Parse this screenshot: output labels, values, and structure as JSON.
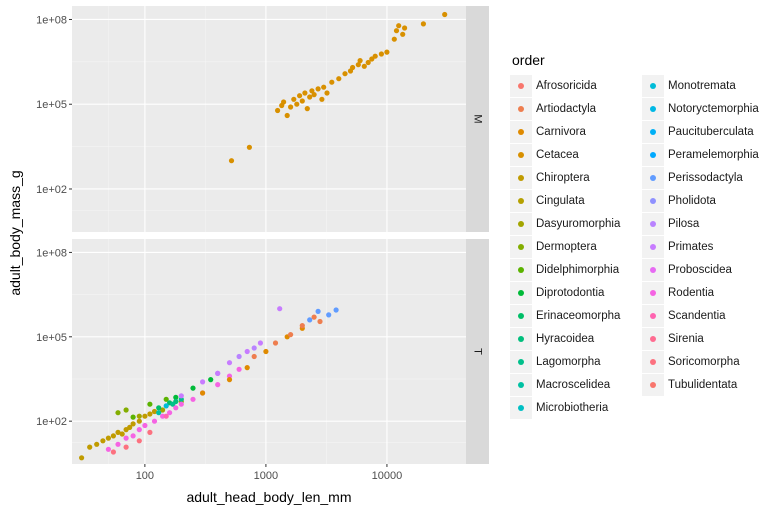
{
  "chart_data": {
    "type": "scatter",
    "xlabel": "adult_head_body_len_mm",
    "ylabel": "adult_body_mass_g",
    "x_scale": "log10",
    "y_scale": "log10",
    "xlim": [
      25,
      45000
    ],
    "ylim": [
      3,
      300000000
    ],
    "x_ticks": [
      {
        "value": 100,
        "label": "100"
      },
      {
        "value": 1000,
        "label": "1000"
      },
      {
        "value": 10000,
        "label": "10000"
      }
    ],
    "y_ticks": [
      {
        "value": 100,
        "label": "1e+02"
      },
      {
        "value": 100000,
        "label": "1e+05"
      },
      {
        "value": 100000000,
        "label": "1e+08"
      }
    ],
    "grid": true,
    "legend_position": "right",
    "legend_title": "order",
    "facets": [
      {
        "strip": "M",
        "points": [
          {
            "order": "Cetacea",
            "x": 520,
            "y": 1000
          },
          {
            "order": "Cetacea",
            "x": 730,
            "y": 3000
          },
          {
            "order": "Cetacea",
            "x": 1250,
            "y": 60000
          },
          {
            "order": "Cetacea",
            "x": 1350,
            "y": 90000
          },
          {
            "order": "Cetacea",
            "x": 1400,
            "y": 120000
          },
          {
            "order": "Cetacea",
            "x": 1500,
            "y": 40000
          },
          {
            "order": "Cetacea",
            "x": 1600,
            "y": 80000
          },
          {
            "order": "Cetacea",
            "x": 1700,
            "y": 150000
          },
          {
            "order": "Cetacea",
            "x": 1800,
            "y": 100000
          },
          {
            "order": "Cetacea",
            "x": 1900,
            "y": 200000
          },
          {
            "order": "Cetacea",
            "x": 2000,
            "y": 130000
          },
          {
            "order": "Cetacea",
            "x": 2100,
            "y": 250000
          },
          {
            "order": "Cetacea",
            "x": 2200,
            "y": 70000
          },
          {
            "order": "Cetacea",
            "x": 2300,
            "y": 180000
          },
          {
            "order": "Cetacea",
            "x": 2400,
            "y": 300000
          },
          {
            "order": "Cetacea",
            "x": 2500,
            "y": 220000
          },
          {
            "order": "Cetacea",
            "x": 2700,
            "y": 350000
          },
          {
            "order": "Cetacea",
            "x": 2900,
            "y": 150000
          },
          {
            "order": "Cetacea",
            "x": 3000,
            "y": 400000
          },
          {
            "order": "Cetacea",
            "x": 3200,
            "y": 250000
          },
          {
            "order": "Cetacea",
            "x": 3500,
            "y": 600000
          },
          {
            "order": "Cetacea",
            "x": 4000,
            "y": 800000
          },
          {
            "order": "Cetacea",
            "x": 4500,
            "y": 1200000
          },
          {
            "order": "Cetacea",
            "x": 5000,
            "y": 1500000
          },
          {
            "order": "Cetacea",
            "x": 5200,
            "y": 2000000
          },
          {
            "order": "Cetacea",
            "x": 5800,
            "y": 2500000
          },
          {
            "order": "Cetacea",
            "x": 6000,
            "y": 3500000
          },
          {
            "order": "Cetacea",
            "x": 6500,
            "y": 2200000
          },
          {
            "order": "Cetacea",
            "x": 7000,
            "y": 3000000
          },
          {
            "order": "Cetacea",
            "x": 7500,
            "y": 4000000
          },
          {
            "order": "Cetacea",
            "x": 8000,
            "y": 5000000
          },
          {
            "order": "Cetacea",
            "x": 9000,
            "y": 6000000
          },
          {
            "order": "Cetacea",
            "x": 10000,
            "y": 7000000
          },
          {
            "order": "Cetacea",
            "x": 11500,
            "y": 20000000
          },
          {
            "order": "Cetacea",
            "x": 12000,
            "y": 40000000
          },
          {
            "order": "Cetacea",
            "x": 12500,
            "y": 60000000
          },
          {
            "order": "Cetacea",
            "x": 13500,
            "y": 30000000
          },
          {
            "order": "Cetacea",
            "x": 14000,
            "y": 50000000
          },
          {
            "order": "Cetacea",
            "x": 20000,
            "y": 70000000
          },
          {
            "order": "Cetacea",
            "x": 30000,
            "y": 150000000
          }
        ]
      },
      {
        "strip": "T",
        "points": [
          {
            "order": "Chiroptera",
            "x": 30,
            "y": 5
          },
          {
            "order": "Chiroptera",
            "x": 35,
            "y": 12
          },
          {
            "order": "Chiroptera",
            "x": 40,
            "y": 15
          },
          {
            "order": "Chiroptera",
            "x": 45,
            "y": 20
          },
          {
            "order": "Chiroptera",
            "x": 50,
            "y": 25
          },
          {
            "order": "Chiroptera",
            "x": 55,
            "y": 30
          },
          {
            "order": "Chiroptera",
            "x": 60,
            "y": 40
          },
          {
            "order": "Chiroptera",
            "x": 65,
            "y": 35
          },
          {
            "order": "Chiroptera",
            "x": 70,
            "y": 50
          },
          {
            "order": "Chiroptera",
            "x": 75,
            "y": 60
          },
          {
            "order": "Chiroptera",
            "x": 80,
            "y": 80
          },
          {
            "order": "Chiroptera",
            "x": 90,
            "y": 100
          },
          {
            "order": "Chiroptera",
            "x": 100,
            "y": 150
          },
          {
            "order": "Chiroptera",
            "x": 110,
            "y": 180
          },
          {
            "order": "Chiroptera",
            "x": 120,
            "y": 220
          },
          {
            "order": "Dasyuromorphia",
            "x": 90,
            "y": 150
          },
          {
            "order": "Dasyuromorphia",
            "x": 140,
            "y": 250
          },
          {
            "order": "Dasyuromorphia",
            "x": 200,
            "y": 500
          },
          {
            "order": "Dermoptera",
            "x": 60,
            "y": 200
          },
          {
            "order": "Dermoptera",
            "x": 70,
            "y": 250
          },
          {
            "order": "Didelphimorphia",
            "x": 80,
            "y": 140
          },
          {
            "order": "Didelphimorphia",
            "x": 110,
            "y": 400
          },
          {
            "order": "Didelphimorphia",
            "x": 150,
            "y": 600
          },
          {
            "order": "Diprotodontia",
            "x": 180,
            "y": 700
          },
          {
            "order": "Diprotodontia",
            "x": 250,
            "y": 1500
          },
          {
            "order": "Diprotodontia",
            "x": 350,
            "y": 3000
          },
          {
            "order": "Erinaceomorpha",
            "x": 130,
            "y": 300
          },
          {
            "order": "Erinaceomorpha",
            "x": 160,
            "y": 450
          },
          {
            "order": "Hyracoidea",
            "x": 180,
            "y": 500
          },
          {
            "order": "Lagomorpha",
            "x": 170,
            "y": 400
          },
          {
            "order": "Lagomorpha",
            "x": 200,
            "y": 600
          },
          {
            "order": "Macroscelidea",
            "x": 130,
            "y": 200
          },
          {
            "order": "Monotremata",
            "x": 150,
            "y": 350
          },
          {
            "order": "Perissodactyla",
            "x": 2300,
            "y": 400000
          },
          {
            "order": "Perissodactyla",
            "x": 2700,
            "y": 800000
          },
          {
            "order": "Perissodactyla",
            "x": 3300,
            "y": 600000
          },
          {
            "order": "Perissodactyla",
            "x": 3800,
            "y": 900000
          },
          {
            "order": "Pilosa",
            "x": 400,
            "y": 5000
          },
          {
            "order": "Pilosa",
            "x": 600,
            "y": 20000
          },
          {
            "order": "Pilosa",
            "x": 800,
            "y": 40000
          },
          {
            "order": "Primates",
            "x": 200,
            "y": 800
          },
          {
            "order": "Primates",
            "x": 300,
            "y": 2500
          },
          {
            "order": "Primates",
            "x": 400,
            "y": 5000
          },
          {
            "order": "Primates",
            "x": 500,
            "y": 12000
          },
          {
            "order": "Primates",
            "x": 700,
            "y": 30000
          },
          {
            "order": "Primates",
            "x": 900,
            "y": 60000
          },
          {
            "order": "Primates",
            "x": 1300,
            "y": 1000000
          },
          {
            "order": "Rodentia",
            "x": 50,
            "y": 10
          },
          {
            "order": "Rodentia",
            "x": 60,
            "y": 15
          },
          {
            "order": "Rodentia",
            "x": 70,
            "y": 25
          },
          {
            "order": "Rodentia",
            "x": 80,
            "y": 30
          },
          {
            "order": "Rodentia",
            "x": 90,
            "y": 50
          },
          {
            "order": "Rodentia",
            "x": 100,
            "y": 70
          },
          {
            "order": "Rodentia",
            "x": 120,
            "y": 100
          },
          {
            "order": "Rodentia",
            "x": 140,
            "y": 150
          },
          {
            "order": "Rodentia",
            "x": 160,
            "y": 200
          },
          {
            "order": "Rodentia",
            "x": 180,
            "y": 300
          },
          {
            "order": "Rodentia",
            "x": 200,
            "y": 400
          },
          {
            "order": "Rodentia",
            "x": 250,
            "y": 600
          },
          {
            "order": "Rodentia",
            "x": 300,
            "y": 1000
          },
          {
            "order": "Rodentia",
            "x": 400,
            "y": 2000
          },
          {
            "order": "Rodentia",
            "x": 500,
            "y": 4000
          },
          {
            "order": "Rodentia",
            "x": 600,
            "y": 7000
          },
          {
            "order": "Scandentia",
            "x": 150,
            "y": 150
          },
          {
            "order": "Soricomorpha",
            "x": 55,
            "y": 8
          },
          {
            "order": "Soricomorpha",
            "x": 70,
            "y": 12
          },
          {
            "order": "Soricomorpha",
            "x": 90,
            "y": 20
          },
          {
            "order": "Soricomorpha",
            "x": 110,
            "y": 40
          },
          {
            "order": "Carnivora",
            "x": 300,
            "y": 1000
          },
          {
            "order": "Carnivora",
            "x": 500,
            "y": 3000
          },
          {
            "order": "Carnivora",
            "x": 700,
            "y": 8000
          },
          {
            "order": "Carnivora",
            "x": 1000,
            "y": 30000
          },
          {
            "order": "Carnivora",
            "x": 1500,
            "y": 100000
          },
          {
            "order": "Carnivora",
            "x": 2000,
            "y": 200000
          },
          {
            "order": "Artiodactyla",
            "x": 800,
            "y": 20000
          },
          {
            "order": "Artiodactyla",
            "x": 1200,
            "y": 60000
          },
          {
            "order": "Artiodactyla",
            "x": 1600,
            "y": 120000
          },
          {
            "order": "Artiodactyla",
            "x": 2000,
            "y": 250000
          },
          {
            "order": "Artiodactyla",
            "x": 2500,
            "y": 500000
          },
          {
            "order": "Artiodactyla",
            "x": 2800,
            "y": 350000
          }
        ]
      }
    ]
  },
  "legend": {
    "title": "order",
    "items": [
      {
        "label": "Afrosoricida",
        "color": "#F8766D"
      },
      {
        "label": "Artiodactyla",
        "color": "#EE7E4F"
      },
      {
        "label": "Carnivora",
        "color": "#DF8A00"
      },
      {
        "label": "Cetacea",
        "color": "#D89000"
      },
      {
        "label": "Chiroptera",
        "color": "#C09B00"
      },
      {
        "label": "Cingulata",
        "color": "#B5A000"
      },
      {
        "label": "Dasyuromorphia",
        "color": "#A3A500"
      },
      {
        "label": "Dermoptera",
        "color": "#83AD00"
      },
      {
        "label": "Didelphimorphia",
        "color": "#5BB300"
      },
      {
        "label": "Diprotodontia",
        "color": "#00BA38"
      },
      {
        "label": "Erinaceomorpha",
        "color": "#00BE67"
      },
      {
        "label": "Hyracoidea",
        "color": "#00BF7D"
      },
      {
        "label": "Lagomorpha",
        "color": "#00C08B"
      },
      {
        "label": "Macroscelidea",
        "color": "#00C1A3"
      },
      {
        "label": "Microbiotheria",
        "color": "#00BFC4"
      },
      {
        "label": "Monotremata",
        "color": "#00BCD8"
      },
      {
        "label": "Notoryctemorphia",
        "color": "#00B8E5"
      },
      {
        "label": "Paucituberculata",
        "color": "#00B0F6"
      },
      {
        "label": "Peramelemorphia",
        "color": "#00A9FF"
      },
      {
        "label": "Perissodactyla",
        "color": "#619CFF"
      },
      {
        "label": "Pholidota",
        "color": "#8F91FF"
      },
      {
        "label": "Pilosa",
        "color": "#B983FF"
      },
      {
        "label": "Primates",
        "color": "#C77CFF"
      },
      {
        "label": "Proboscidea",
        "color": "#E76BF3"
      },
      {
        "label": "Rodentia",
        "color": "#F564E3"
      },
      {
        "label": "Scandentia",
        "color": "#FF64B0"
      },
      {
        "label": "Sirenia",
        "color": "#FF6C91"
      },
      {
        "label": "Soricomorpha",
        "color": "#FC717F"
      },
      {
        "label": "Tubulidentata",
        "color": "#F8766D"
      }
    ]
  }
}
